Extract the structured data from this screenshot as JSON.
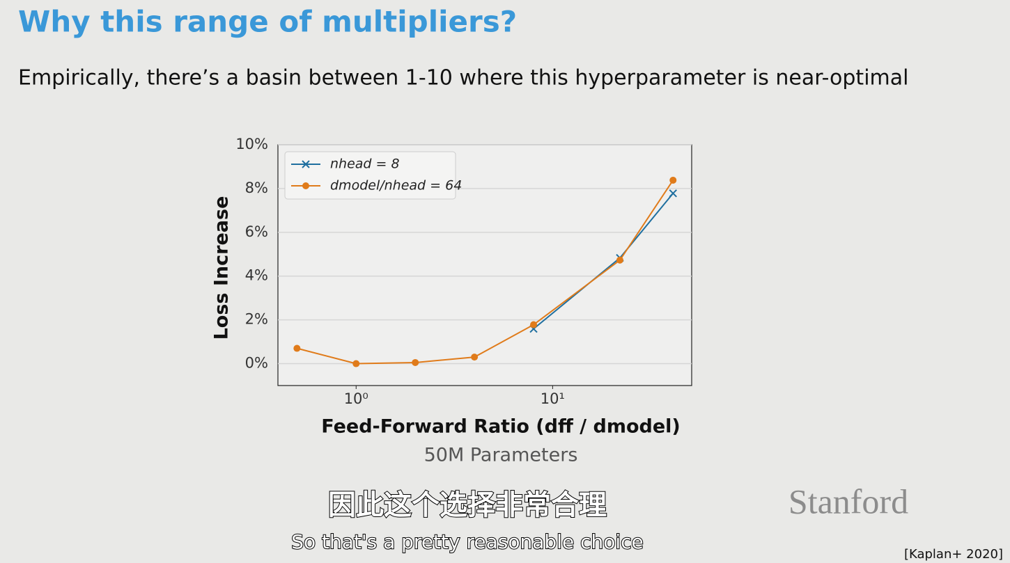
{
  "slide": {
    "title": "Why this range of multipliers?",
    "subtitle": "Empirically, there’s a  basin between 1-10 where this hyperparameter is near-optimal",
    "logo": "Stanford",
    "citation": "[Kaplan+ 2020]",
    "caption_zh": "因此这个选择非常合理",
    "caption_en": "So that's a pretty reasonable choice"
  },
  "chart_data": {
    "type": "line",
    "xscale": "log",
    "x_label": "Feed-Forward Ratio (dff / dmodel)",
    "subtitle": "50M Parameters",
    "y_label": "Loss Increase",
    "x": [
      0.5,
      1,
      2,
      4,
      8,
      22,
      41
    ],
    "series": [
      {
        "name": "nhead = 8",
        "color": "#1f6f9f",
        "marker": "x",
        "values": [
          null,
          null,
          null,
          null,
          1.59,
          4.83,
          7.78
        ]
      },
      {
        "name": "dmodel/nhead = 64",
        "color": "#e07b1a",
        "marker": "circle",
        "values": [
          0.7,
          0,
          0.05,
          0.3,
          1.78,
          4.73,
          8.38
        ]
      }
    ],
    "xlim": [
      0.4,
      51
    ],
    "ylim": [
      -1,
      10
    ],
    "xticks": [
      {
        "value": 1,
        "label": "10⁰"
      },
      {
        "value": 10,
        "label": "10¹"
      }
    ],
    "yticks": [
      {
        "value": 0,
        "label": "0%"
      },
      {
        "value": 2,
        "label": "2%"
      },
      {
        "value": 4,
        "label": "4%"
      },
      {
        "value": 6,
        "label": "6%"
      },
      {
        "value": 8,
        "label": "8%"
      },
      {
        "value": 10,
        "label": "10%"
      }
    ],
    "grid": true,
    "legend": "upper left"
  }
}
